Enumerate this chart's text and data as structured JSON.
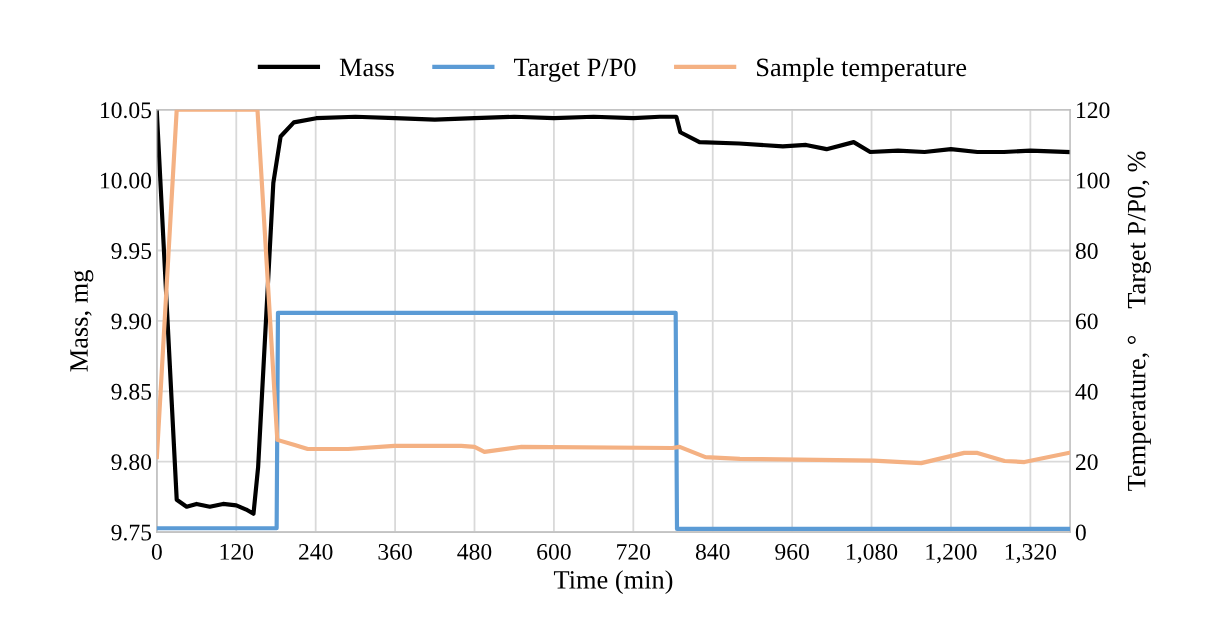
{
  "chart_data": {
    "type": "line",
    "xlabel": "Time (min)",
    "ylabel": "Mass, mg",
    "y2label": "Temperature, °    Target P/P0, %",
    "xlim": [
      0,
      1380
    ],
    "xticks": [
      0,
      120,
      240,
      360,
      480,
      600,
      720,
      840,
      960,
      {
        "value": 1080,
        "label": "1,080"
      },
      {
        "value": 1200,
        "label": "1,200"
      },
      {
        "value": 1320,
        "label": "1,320"
      }
    ],
    "ylim": [
      9.75,
      10.05
    ],
    "yticks": [
      {
        "value": 9.75,
        "label": "9.75"
      },
      {
        "value": 9.8,
        "label": "9.80"
      },
      {
        "value": 9.85,
        "label": "9.85"
      },
      {
        "value": 9.9,
        "label": "9.90"
      },
      {
        "value": 9.95,
        "label": "9.95"
      },
      {
        "value": 10.0,
        "label": "10.00"
      },
      {
        "value": 10.05,
        "label": "10.05"
      }
    ],
    "y2lim": [
      0,
      120
    ],
    "y2ticks": [
      0,
      20,
      40,
      60,
      80,
      100,
      120
    ],
    "grid": true,
    "legend": "top",
    "marker": "none",
    "line_style": "solid",
    "series": [
      {
        "name": "Mass",
        "color": "#000000",
        "x": [
          0,
          30,
          45,
          60,
          80,
          100,
          120,
          135,
          146,
          153,
          176,
          187,
          207,
          241,
          300,
          360,
          420,
          480,
          540,
          600,
          660,
          720,
          760,
          785,
          791,
          820,
          880,
          946,
          981,
          1012,
          1053,
          1078,
          1120,
          1160,
          1200,
          1240,
          1280,
          1320,
          1378
        ],
        "values": [
          10.048,
          9.773,
          9.768,
          9.77,
          9.768,
          9.77,
          9.769,
          9.766,
          9.763,
          9.796,
          9.998,
          10.031,
          10.041,
          10.044,
          10.045,
          10.044,
          10.043,
          10.044,
          10.045,
          10.044,
          10.045,
          10.044,
          10.045,
          10.045,
          10.034,
          10.027,
          10.026,
          10.024,
          10.025,
          10.022,
          10.027,
          10.02,
          10.021,
          10.02,
          10.022,
          10.02,
          10.02,
          10.021,
          10.02
        ]
      },
      {
        "name": "Target P/P0",
        "color": "#5b9bd5",
        "axis": "y2",
        "x": [
          0,
          181,
          183,
          784,
          786,
          1378
        ],
        "values": [
          1.1,
          1.1,
          62.3,
          62.3,
          0.9,
          0.9
        ]
      },
      {
        "name": "Sample temperature",
        "color": "#f4b183",
        "axis": "y2",
        "x": [
          0,
          30,
          152,
          182,
          207,
          228,
          289,
          359,
          460,
          480,
          495,
          551,
          779,
          790,
          829,
          881,
          1083,
          1155,
          1220,
          1240,
          1281,
          1311,
          1378
        ],
        "values": [
          21.3,
          120,
          120,
          26.2,
          24.8,
          23.6,
          23.6,
          24.5,
          24.5,
          24.2,
          22.8,
          24.2,
          23.9,
          24.2,
          21.3,
          20.8,
          20.3,
          19.6,
          22.5,
          22.5,
          20.2,
          19.9,
          22.5
        ]
      }
    ]
  }
}
